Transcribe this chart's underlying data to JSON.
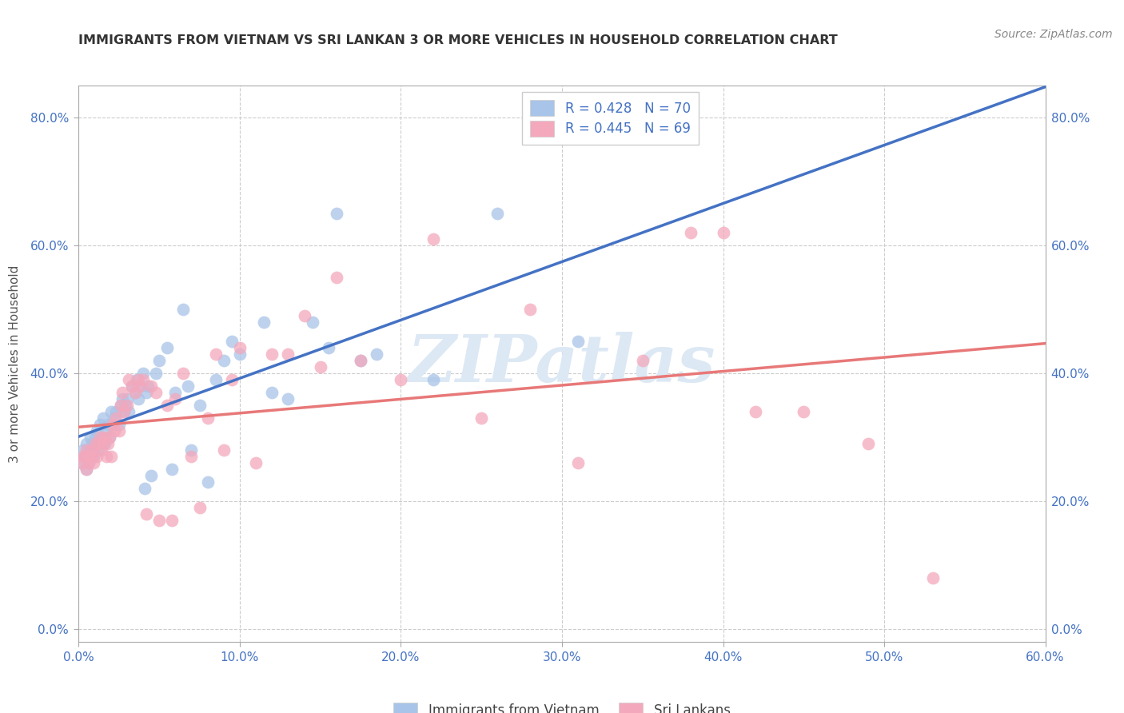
{
  "title": "IMMIGRANTS FROM VIETNAM VS SRI LANKAN 3 OR MORE VEHICLES IN HOUSEHOLD CORRELATION CHART",
  "source": "Source: ZipAtlas.com",
  "ylabel": "3 or more Vehicles in Household",
  "xlim": [
    0.0,
    0.6
  ],
  "ylim": [
    -0.02,
    0.85
  ],
  "xticks": [
    0.0,
    0.1,
    0.2,
    0.3,
    0.4,
    0.5,
    0.6
  ],
  "yticks": [
    0.0,
    0.2,
    0.4,
    0.6,
    0.8
  ],
  "xtick_labels": [
    "0.0%",
    "10.0%",
    "20.0%",
    "30.0%",
    "40.0%",
    "50.0%",
    "60.0%"
  ],
  "ytick_labels": [
    "0.0%",
    "20.0%",
    "40.0%",
    "60.0%",
    "80.0%"
  ],
  "vietnam_scatter_color": "#a8c4e8",
  "srilanka_scatter_color": "#f4a8bc",
  "vietnam_line_color": "#4472c4",
  "srilanka_line_color": "#e87878",
  "axis_tick_color": "#4472c4",
  "title_color": "#333333",
  "source_color": "#888888",
  "ylabel_color": "#555555",
  "watermark": "ZIPatlas",
  "watermark_color": "#dce8f4",
  "grid_color": "#cccccc",
  "legend_top": [
    {
      "label": "R = 0.428   N = 70",
      "patch_color": "#a8c4e8"
    },
    {
      "label": "R = 0.445   N = 69",
      "patch_color": "#f4a8bc"
    }
  ],
  "legend_bottom": [
    {
      "label": "Immigrants from Vietnam",
      "patch_color": "#a8c4e8"
    },
    {
      "label": "Sri Lankans",
      "patch_color": "#f4a8bc"
    }
  ],
  "vietnam_x": [
    0.002,
    0.003,
    0.004,
    0.005,
    0.005,
    0.006,
    0.006,
    0.007,
    0.007,
    0.008,
    0.008,
    0.009,
    0.009,
    0.01,
    0.01,
    0.011,
    0.012,
    0.013,
    0.014,
    0.015,
    0.016,
    0.017,
    0.018,
    0.019,
    0.02,
    0.021,
    0.022,
    0.023,
    0.025,
    0.026,
    0.027,
    0.028,
    0.029,
    0.03,
    0.031,
    0.033,
    0.035,
    0.036,
    0.037,
    0.038,
    0.04,
    0.041,
    0.042,
    0.043,
    0.045,
    0.048,
    0.05,
    0.055,
    0.058,
    0.06,
    0.065,
    0.068,
    0.07,
    0.075,
    0.08,
    0.085,
    0.09,
    0.095,
    0.1,
    0.115,
    0.12,
    0.13,
    0.145,
    0.155,
    0.16,
    0.175,
    0.185,
    0.22,
    0.26,
    0.31
  ],
  "vietnam_y": [
    0.26,
    0.28,
    0.27,
    0.25,
    0.29,
    0.26,
    0.28,
    0.27,
    0.3,
    0.28,
    0.29,
    0.27,
    0.28,
    0.3,
    0.29,
    0.31,
    0.28,
    0.32,
    0.3,
    0.33,
    0.29,
    0.31,
    0.32,
    0.3,
    0.34,
    0.32,
    0.33,
    0.34,
    0.32,
    0.35,
    0.36,
    0.34,
    0.35,
    0.36,
    0.34,
    0.38,
    0.37,
    0.39,
    0.36,
    0.38,
    0.4,
    0.22,
    0.37,
    0.38,
    0.24,
    0.4,
    0.42,
    0.44,
    0.25,
    0.37,
    0.5,
    0.38,
    0.28,
    0.35,
    0.23,
    0.39,
    0.42,
    0.45,
    0.43,
    0.48,
    0.37,
    0.36,
    0.48,
    0.44,
    0.65,
    0.42,
    0.43,
    0.39,
    0.65,
    0.45
  ],
  "srilanka_x": [
    0.002,
    0.003,
    0.004,
    0.005,
    0.005,
    0.006,
    0.007,
    0.008,
    0.008,
    0.009,
    0.01,
    0.011,
    0.012,
    0.013,
    0.014,
    0.015,
    0.016,
    0.017,
    0.018,
    0.019,
    0.02,
    0.021,
    0.022,
    0.023,
    0.025,
    0.026,
    0.027,
    0.028,
    0.03,
    0.031,
    0.033,
    0.035,
    0.037,
    0.038,
    0.04,
    0.042,
    0.045,
    0.048,
    0.05,
    0.055,
    0.058,
    0.06,
    0.065,
    0.07,
    0.075,
    0.08,
    0.085,
    0.09,
    0.095,
    0.1,
    0.11,
    0.12,
    0.13,
    0.14,
    0.15,
    0.16,
    0.175,
    0.2,
    0.22,
    0.25,
    0.28,
    0.31,
    0.35,
    0.38,
    0.4,
    0.42,
    0.45,
    0.49,
    0.53
  ],
  "srilanka_y": [
    0.26,
    0.27,
    0.27,
    0.25,
    0.28,
    0.26,
    0.27,
    0.27,
    0.28,
    0.26,
    0.29,
    0.27,
    0.29,
    0.3,
    0.28,
    0.29,
    0.3,
    0.27,
    0.29,
    0.3,
    0.27,
    0.32,
    0.31,
    0.33,
    0.31,
    0.35,
    0.37,
    0.34,
    0.35,
    0.39,
    0.38,
    0.37,
    0.39,
    0.38,
    0.39,
    0.18,
    0.38,
    0.37,
    0.17,
    0.35,
    0.17,
    0.36,
    0.4,
    0.27,
    0.19,
    0.33,
    0.43,
    0.28,
    0.39,
    0.44,
    0.26,
    0.43,
    0.43,
    0.49,
    0.41,
    0.55,
    0.42,
    0.39,
    0.61,
    0.33,
    0.5,
    0.26,
    0.42,
    0.62,
    0.62,
    0.34,
    0.34,
    0.29,
    0.08
  ]
}
